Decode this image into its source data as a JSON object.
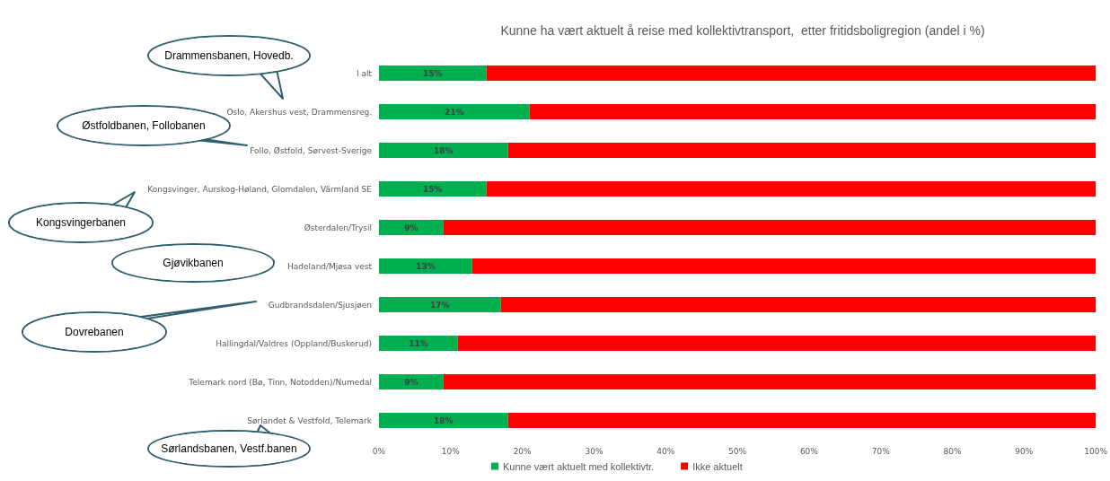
{
  "chart_data": {
    "type": "bar",
    "orientation": "horizontal",
    "stacked": true,
    "title": "Kunne ha vært aktuelt å reise med kollektivtransport,  etter fritidsboligregion (andel i %)",
    "categories": [
      "I alt",
      "Oslo, Akershus vest, Drammensreg.",
      "Follo, Østfold, Sørvest-Sverige",
      "Kongsvinger, Aurskog-Høland, Glomdalen, Värmland SE",
      "Østerdalen/Trysil",
      "Hadeland/Mjøsa vest",
      "Gudbrandsdalen/Sjusjøen",
      "Hallingdal/Valdres (Oppland/Buskerud)",
      "Telemark nord (Bø, Tinn, Notodden)/Numedal",
      "Sørlandet & Vestfold, Telemark"
    ],
    "series": [
      {
        "name": "Kunne vært aktuelt med kollektivtr.",
        "color": "#00b050",
        "values": [
          15,
          21,
          18,
          15,
          9,
          13,
          17,
          11,
          9,
          18
        ],
        "value_labels": [
          "15%",
          "21%",
          "18%",
          "15%",
          "9%",
          "13%",
          "17%",
          "11%",
          "9%",
          "18%"
        ]
      },
      {
        "name": "Ikke aktuelt",
        "color": "#ff0000",
        "values": [
          85,
          79,
          82,
          85,
          91,
          87,
          83,
          89,
          91,
          82
        ]
      }
    ],
    "xlim": [
      0,
      100
    ],
    "xticks": [
      {
        "value": 0,
        "label": "0%"
      },
      {
        "value": 10,
        "label": "10%"
      },
      {
        "value": 20,
        "label": "20%"
      },
      {
        "value": 30,
        "label": "30%"
      },
      {
        "value": 40,
        "label": "40%"
      },
      {
        "value": 50,
        "label": "50%"
      },
      {
        "value": 60,
        "label": "60%"
      },
      {
        "value": 70,
        "label": "70%"
      },
      {
        "value": 80,
        "label": "80%"
      },
      {
        "value": 90,
        "label": "90%"
      },
      {
        "value": 100,
        "label": "100%"
      }
    ],
    "grid": false,
    "legend": "bottom",
    "annotations": [
      "Drammensbanen, Hovedb.",
      "Østfoldbanen, Follobanen",
      "Kongsvingerbanen",
      "Gjøvikbanen",
      "Dovrebanen",
      "Sørlandsbanen, Vestf.banen"
    ]
  }
}
